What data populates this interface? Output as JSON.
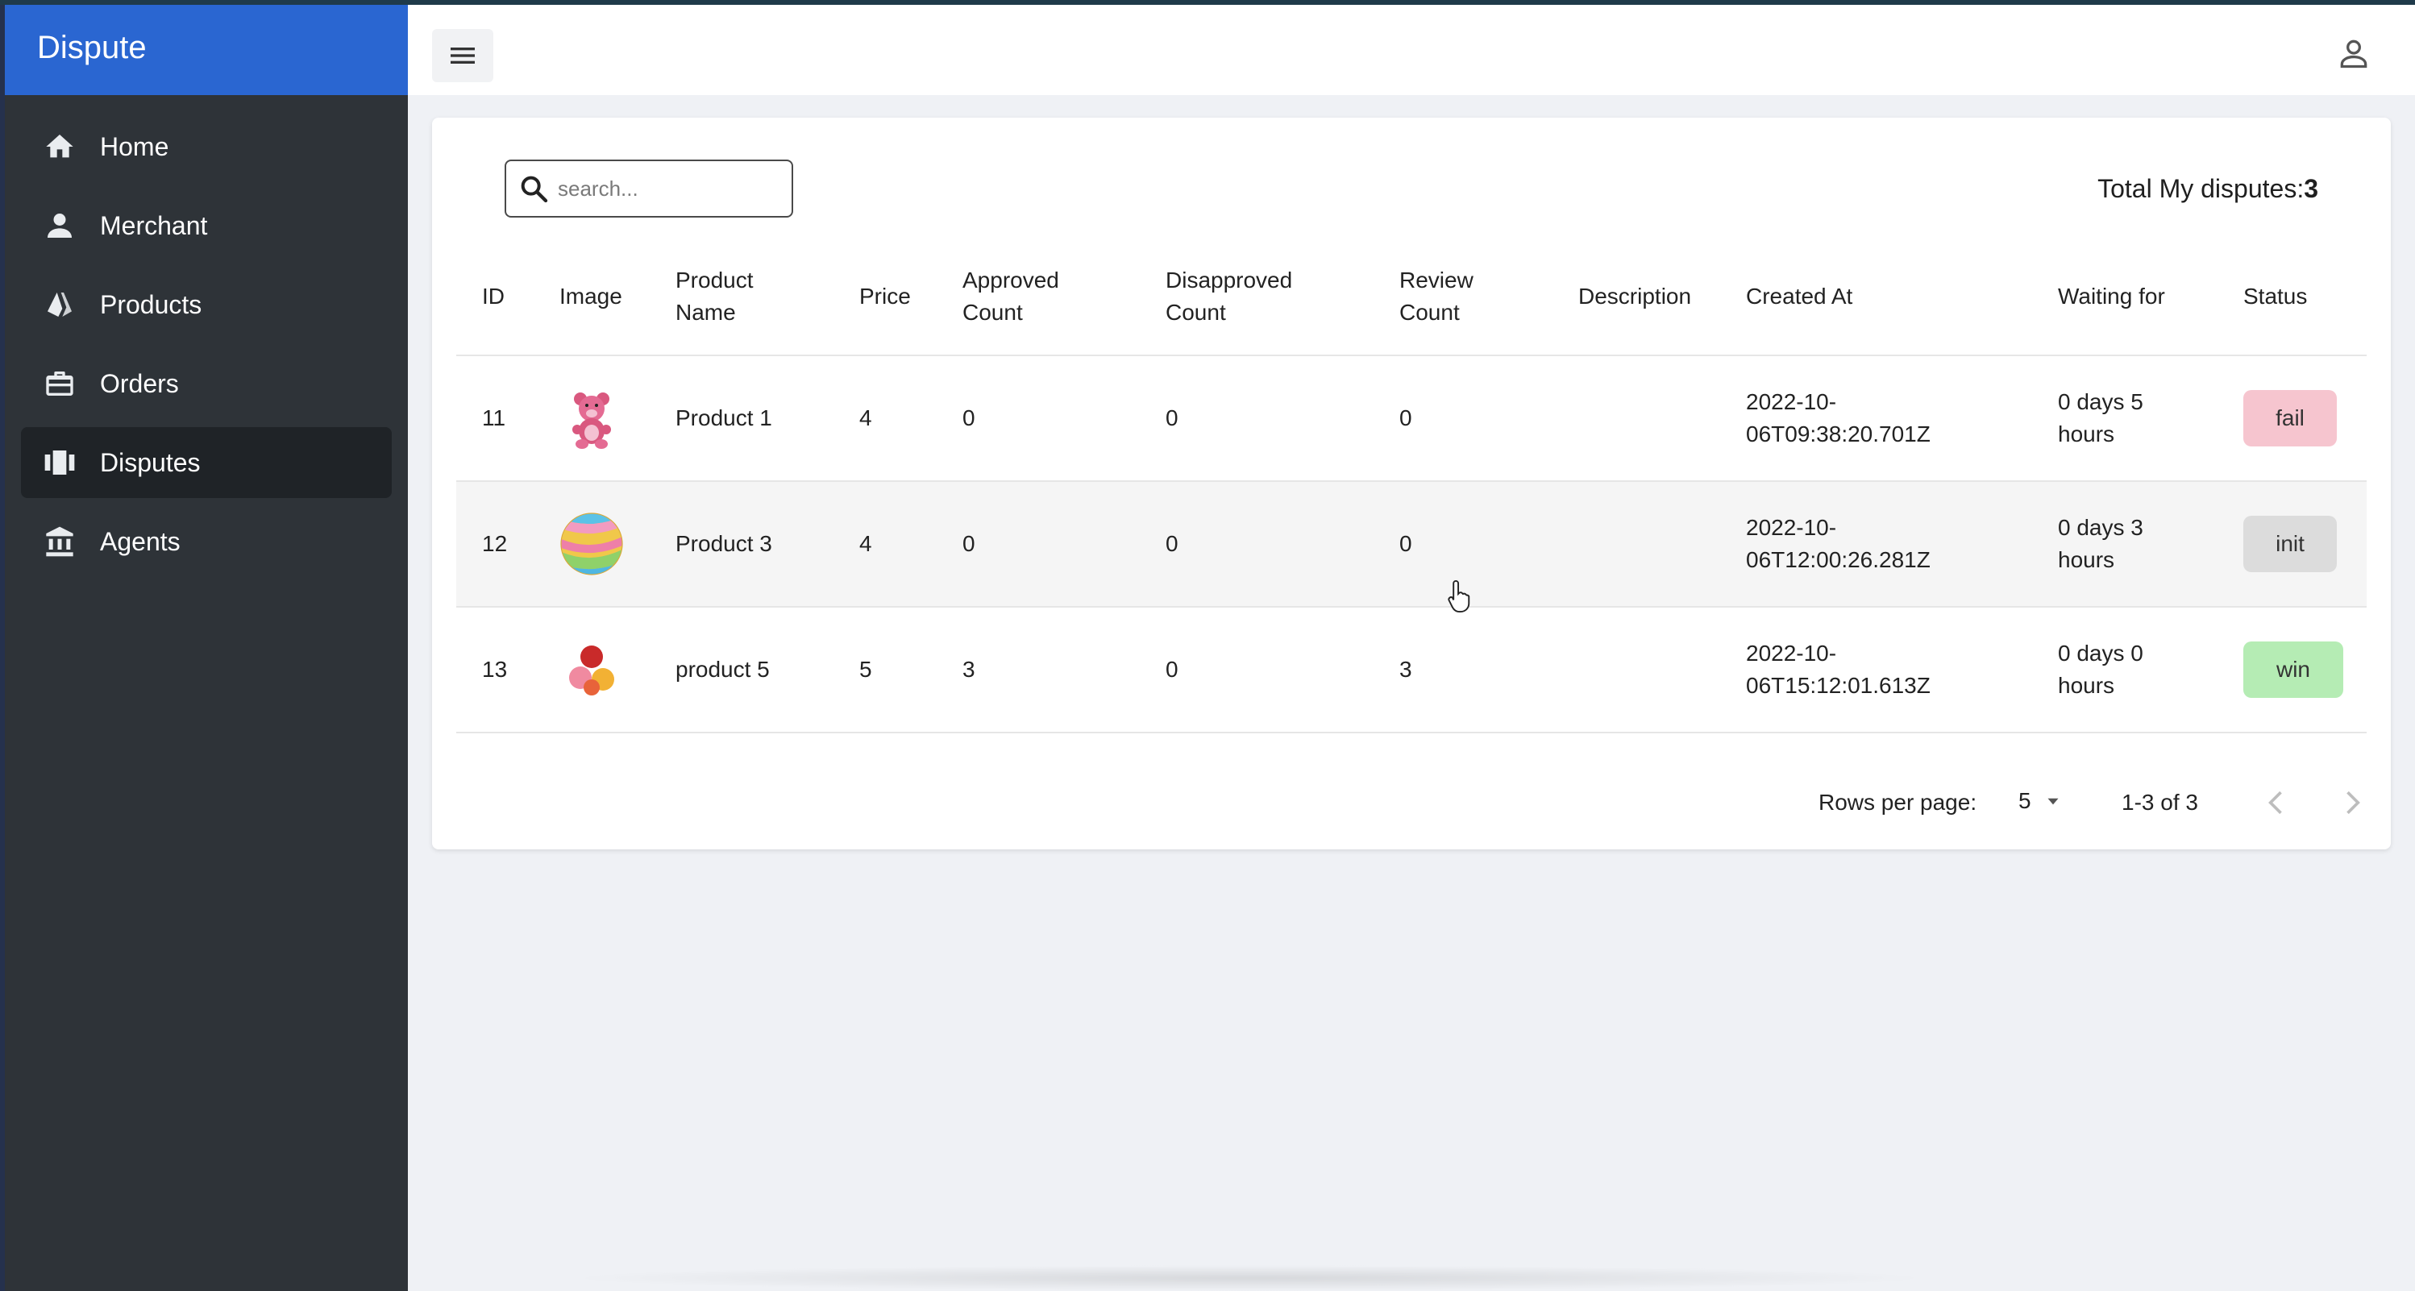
{
  "app": {
    "title": "Dispute"
  },
  "sidebar": {
    "items": [
      {
        "label": "Home",
        "icon": "home-icon"
      },
      {
        "label": "Merchant",
        "icon": "person-icon"
      },
      {
        "label": "Products",
        "icon": "products-icon"
      },
      {
        "label": "Orders",
        "icon": "briefcase-icon"
      },
      {
        "label": "Disputes",
        "icon": "disputes-icon",
        "active": true
      },
      {
        "label": "Agents",
        "icon": "bank-icon"
      }
    ]
  },
  "search": {
    "placeholder": "search..."
  },
  "summary": {
    "label": "Total My disputes:",
    "count": "3"
  },
  "table": {
    "columns": {
      "id": "ID",
      "image": "Image",
      "product_name_1": "Product",
      "product_name_2": "Name",
      "price": "Price",
      "approved_1": "Approved",
      "approved_2": "Count",
      "disapproved_1": "Disapproved",
      "disapproved_2": "Count",
      "review_1": "Review",
      "review_2": "Count",
      "description": "Description",
      "created_at": "Created At",
      "waiting_for": "Waiting for",
      "status": "Status"
    },
    "rows": [
      {
        "id": "11",
        "image": "teddy-bear",
        "name": "Product 1",
        "price": "4",
        "approved": "0",
        "disapproved": "0",
        "review": "0",
        "description": "",
        "created_1": "2022-10-",
        "created_2": "06T09:38:20.701Z",
        "wait_1": "0 days 5",
        "wait_2": "hours",
        "status": "fail"
      },
      {
        "id": "12",
        "image": "rainbow-ball",
        "name": "Product 3",
        "price": "4",
        "approved": "0",
        "disapproved": "0",
        "review": "0",
        "description": "",
        "created_1": "2022-10-",
        "created_2": "06T12:00:26.281Z",
        "wait_1": "0 days 3",
        "wait_2": "hours",
        "status": "init"
      },
      {
        "id": "13",
        "image": "balls",
        "name": "product 5",
        "price": "5",
        "approved": "3",
        "disapproved": "0",
        "review": "3",
        "description": "",
        "created_1": "2022-10-",
        "created_2": "06T15:12:01.613Z",
        "wait_1": "0 days 0",
        "wait_2": "hours",
        "status": "win"
      }
    ]
  },
  "pagination": {
    "rows_per_page_label": "Rows per page:",
    "rows_per_page_value": "5",
    "range": "1-3 of 3"
  },
  "colors": {
    "brand": "#2a66d1",
    "sidebar": "#2e3338",
    "fail": "#f6c5cf",
    "init": "#dcdcdc",
    "win": "#b5ecb4"
  }
}
